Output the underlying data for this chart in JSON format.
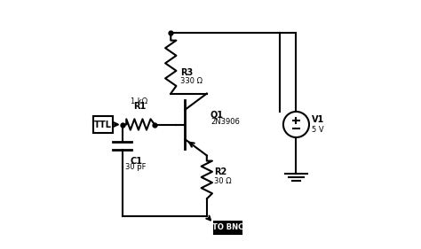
{
  "bg_color": "#ffffff",
  "line_color": "#000000",
  "line_width": 1.5,
  "fs": 7,
  "fs_small": 6,
  "ttl_label": "TTL",
  "r1_label": "R1",
  "r1_val": "1 kΩ",
  "c1_label": "C1",
  "c1_val": "30 pF",
  "r3_label": "R3",
  "r3_val": "330 Ω",
  "q1_label": "Q1",
  "q1_val": "2N3906",
  "r2_label": "R2",
  "r2_val": "30 Ω",
  "v1_label": "V1",
  "v1_val": "5 V",
  "bnc_label": "TO BNC"
}
